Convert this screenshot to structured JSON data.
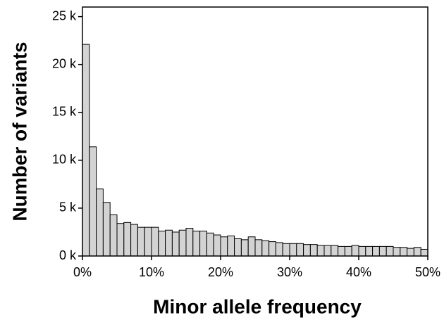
{
  "chart_data": {
    "type": "histogram",
    "x_label": "Minor allele frequency",
    "y_label": "Number of variants",
    "bins": [
      0,
      1,
      2,
      3,
      4,
      5,
      6,
      7,
      8,
      9,
      10,
      11,
      12,
      13,
      14,
      15,
      16,
      17,
      18,
      19,
      20,
      21,
      22,
      23,
      24,
      25,
      26,
      27,
      28,
      29,
      30,
      31,
      32,
      33,
      34,
      35,
      36,
      37,
      38,
      39,
      40,
      41,
      42,
      43,
      44,
      45,
      46,
      47,
      48,
      49,
      50
    ],
    "values": [
      22100,
      11400,
      7000,
      5600,
      4300,
      3400,
      3500,
      3300,
      3000,
      3000,
      3000,
      2600,
      2700,
      2500,
      2700,
      2900,
      2600,
      2600,
      2400,
      2200,
      2000,
      2100,
      1800,
      1700,
      2000,
      1700,
      1600,
      1500,
      1400,
      1300,
      1300,
      1300,
      1200,
      1200,
      1100,
      1100,
      1100,
      1000,
      1000,
      1100,
      1000,
      1000,
      1000,
      1000,
      1000,
      900,
      900,
      800,
      900,
      700
    ],
    "color": "#d3d3d3",
    "xlim": [
      0,
      50
    ],
    "xticks": [
      {
        "value": 0,
        "label": "0%"
      },
      {
        "value": 10,
        "label": "10%"
      },
      {
        "value": 20,
        "label": "20%"
      },
      {
        "value": 30,
        "label": "30%"
      },
      {
        "value": 40,
        "label": "40%"
      },
      {
        "value": 50,
        "label": "50%"
      }
    ],
    "ylim": [
      0,
      26000
    ],
    "yticks": [
      {
        "value": 0,
        "label": "0 k"
      },
      {
        "value": 5000,
        "label": "5 k"
      },
      {
        "value": 10000,
        "label": "10 k"
      },
      {
        "value": 15000,
        "label": "15 k"
      },
      {
        "value": 20000,
        "label": "20 k"
      },
      {
        "value": 25000,
        "label": "25 k"
      }
    ]
  }
}
